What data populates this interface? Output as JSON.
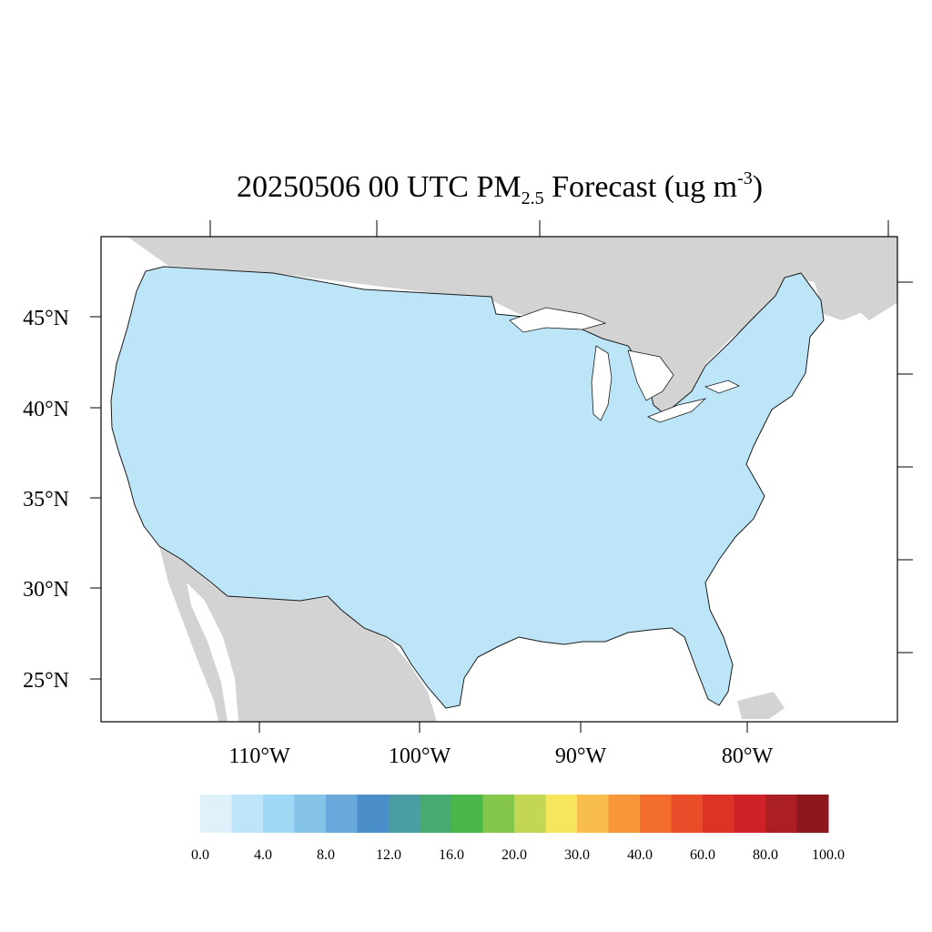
{
  "title": {
    "date_time": "20250506 00 UTC",
    "species": "PM",
    "species_sub": "2.5",
    "forecast_prefix": " Forecast (ug m",
    "unit_exp": "-3",
    "suffix": ")"
  },
  "axes": {
    "lat_labels": [
      "45°N",
      "40°N",
      "35°N",
      "30°N",
      "25°N"
    ],
    "lon_labels": [
      "110°W",
      "100°W",
      "90°W",
      "80°W"
    ]
  },
  "colorbar": {
    "colors": [
      "#dff2fb",
      "#bde5f8",
      "#9fd9f5",
      "#84c2e8",
      "#68a8db",
      "#4a8ec9",
      "#4b9da4",
      "#48aa72",
      "#4ab74a",
      "#84c54c",
      "#c3d754",
      "#f7e55d",
      "#f8bd4a",
      "#f7973a",
      "#f26d2d",
      "#e84c29",
      "#dc3327",
      "#cf2228",
      "#ab1f24",
      "#8c171d"
    ],
    "tick_labels": [
      "0.0",
      "4.0",
      "8.0",
      "12.0",
      "16.0",
      "20.0",
      "30.0",
      "40.0",
      "60.0",
      "80.0",
      "100.0"
    ]
  },
  "map_colors": {
    "background_land": "#d3d3d3",
    "water": "#ffffff",
    "county_border": "#1a1a1a"
  }
}
